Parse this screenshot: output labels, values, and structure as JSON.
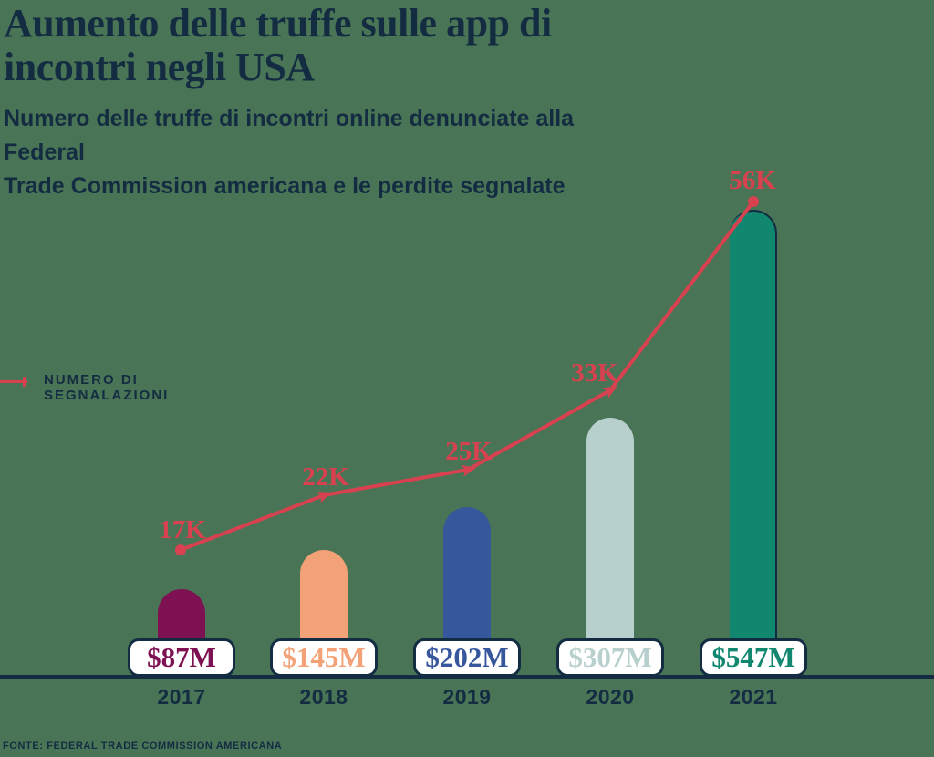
{
  "header": {
    "title": "Aumento delle truffe sulle app di\nincontri negli USA",
    "subtitle": "Numero delle truffe di incontri online denunciate alla Federal\nTrade Commission americana e le perdite segnalate"
  },
  "legend": {
    "label": "NUMERO DI SEGNALAZIONI"
  },
  "footer": {
    "source": "FONTE: FEDERAL TRADE COMMISSION AMERICANA"
  },
  "colors": {
    "background": "#497455",
    "navy": "#132C42",
    "red": "#D8414F",
    "box_fill": "#FFFFFF"
  },
  "chart_data": {
    "type": "bar",
    "title": "Aumento delle truffe sulle app di incontri negli USA",
    "categories": [
      "2017",
      "2018",
      "2019",
      "2020",
      "2021"
    ],
    "series": [
      {
        "name": "NUMERO DI SEGNALAZIONI",
        "type": "line",
        "values": [
          17000,
          22000,
          25000,
          33000,
          56000
        ],
        "labels": [
          "17K",
          "22K",
          "25K",
          "33K",
          "56K"
        ],
        "color": "#D8414F"
      },
      {
        "name": "Perdite segnalate (milioni di dollari)",
        "type": "bar",
        "values": [
          87,
          145,
          202,
          307,
          547
        ],
        "labels": [
          "$87M",
          "$145M",
          "$202M",
          "$307M",
          "$547M"
        ],
        "colors": [
          "#7D1152",
          "#F2A276",
          "#37579D",
          "#B7D0CE",
          "#128770"
        ]
      }
    ],
    "legend_position": "top-left",
    "grid": false,
    "line_pixel_points": "198,603 355,543 513,515 669,428 826,221"
  },
  "years": [
    {
      "year": "2017",
      "loss": "$87M",
      "reports": "17K",
      "color": "#7D1152"
    },
    {
      "year": "2018",
      "loss": "$145M",
      "reports": "22K",
      "color": "#F2A276"
    },
    {
      "year": "2019",
      "loss": "$202M",
      "reports": "25K",
      "color": "#37579D"
    },
    {
      "year": "2020",
      "loss": "$307M",
      "reports": "33K",
      "color": "#B7D0CE"
    },
    {
      "year": "2021",
      "loss": "$547M",
      "reports": "56K",
      "color": "#128770"
    }
  ]
}
